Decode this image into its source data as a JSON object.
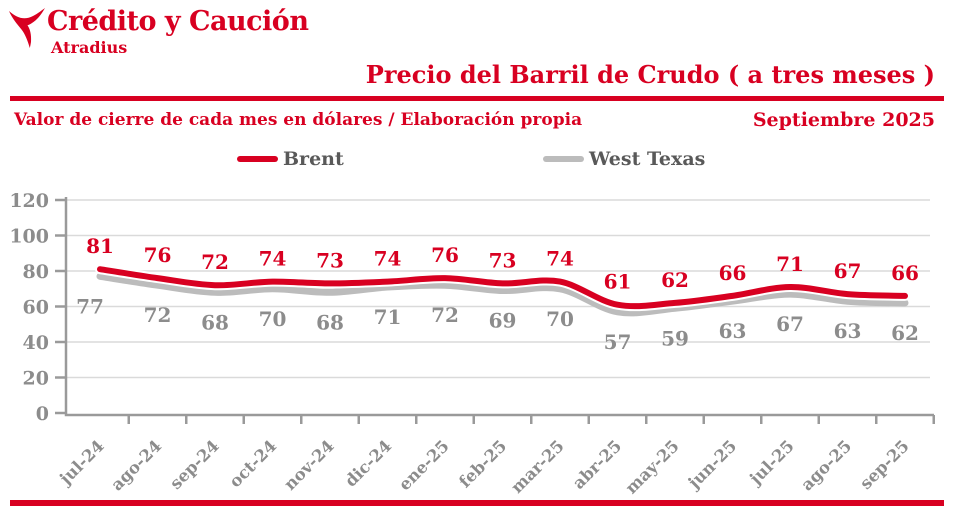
{
  "brand": {
    "name": "Crédito y Caución",
    "sub": "Atradius"
  },
  "header": {
    "title": "Precio del Barril de Crudo ( a tres meses )",
    "subtitle": "Valor de cierre de cada mes en dólares / Elaboración propia",
    "date": "Septiembre 2025"
  },
  "legend": [
    {
      "name": "Brent",
      "color": "#d80021"
    },
    {
      "name": "West Texas",
      "color": "#bcbcbc"
    }
  ],
  "colors": {
    "accent_red": "#d80021",
    "gray_line": "#bcbcbc",
    "value_label_gray": "#8c8c8c",
    "legend_text": "#595959",
    "axis": "#9a9a9a",
    "grid": "#dadada"
  },
  "chart_data": {
    "type": "line",
    "title": "Precio del Barril de Crudo ( a tres meses )",
    "xlabel": "",
    "ylabel": "",
    "categories": [
      "jul-24",
      "ago-24",
      "sep-24",
      "oct-24",
      "nov-24",
      "dic-24",
      "ene-25",
      "feb-25",
      "mar-25",
      "abr-25",
      "may-25",
      "jun-25",
      "jul-25",
      "ago-25",
      "sep-25"
    ],
    "series": [
      {
        "name": "Brent",
        "color": "#d80021",
        "values": [
          81,
          76,
          72,
          74,
          73,
          74,
          76,
          73,
          74,
          61,
          62,
          66,
          71,
          67,
          66
        ]
      },
      {
        "name": "West Texas",
        "color": "#bcbcbc",
        "values": [
          77,
          72,
          68,
          70,
          68,
          71,
          72,
          69,
          70,
          57,
          59,
          63,
          67,
          63,
          62
        ]
      }
    ],
    "ylim": [
      0,
      120
    ],
    "yticks": [
      0,
      20,
      40,
      60,
      80,
      100,
      120
    ],
    "grid": true,
    "data_labels": true,
    "legend_position": "top"
  }
}
